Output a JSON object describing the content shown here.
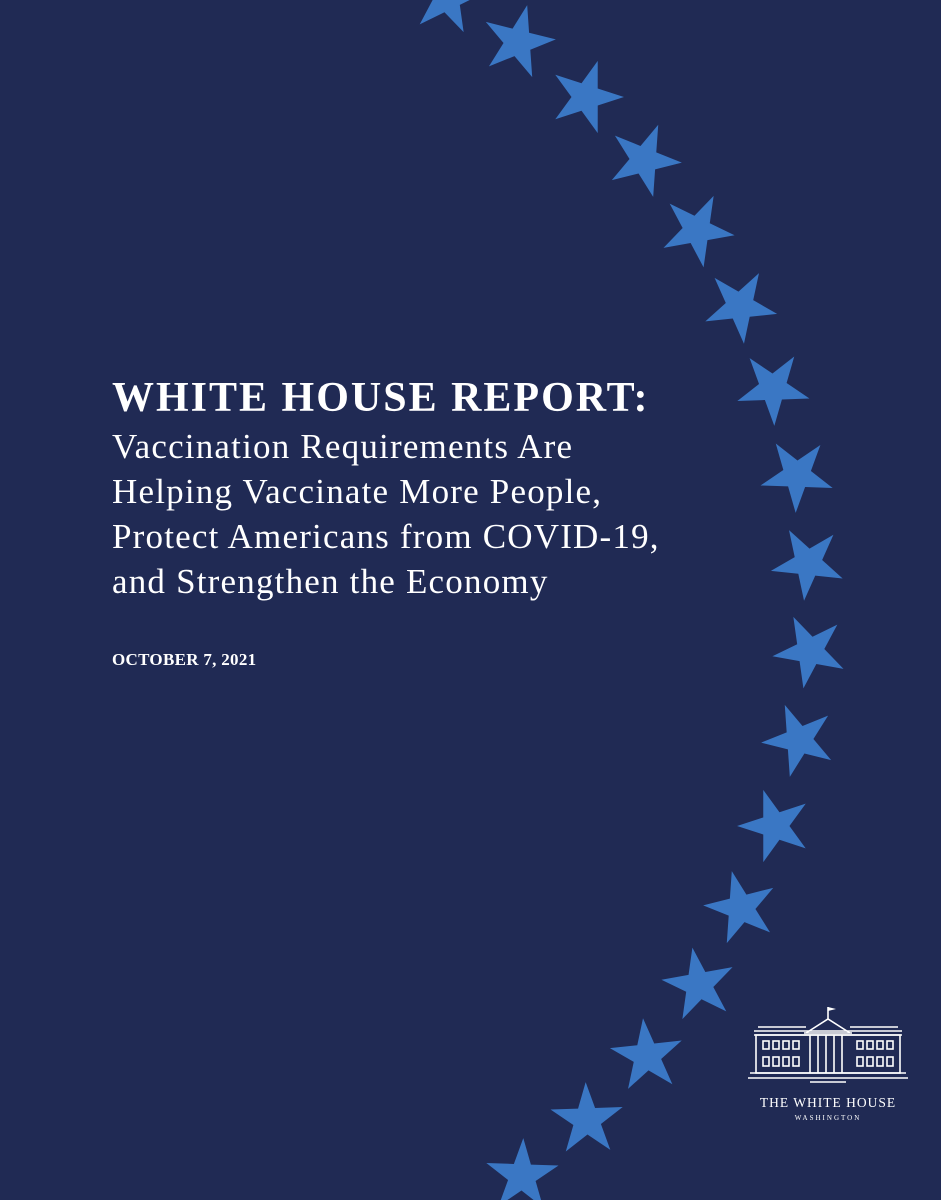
{
  "report": {
    "heading": "WHITE HOUSE REPORT:",
    "subtitle_lines": [
      "Vaccination Requirements Are",
      "Helping Vaccinate More People,",
      "Protect Americans from COVID-19,",
      "and Strengthen the Economy"
    ],
    "date": "OCTOBER 7, 2021"
  },
  "logo": {
    "name": "THE WHITE HOUSE",
    "subtitle": "WASHINGTON"
  },
  "colors": {
    "background": "#202a54",
    "star": "#3a77c4",
    "text": "#ffffff"
  },
  "decoration": {
    "icon": "star-arc"
  }
}
